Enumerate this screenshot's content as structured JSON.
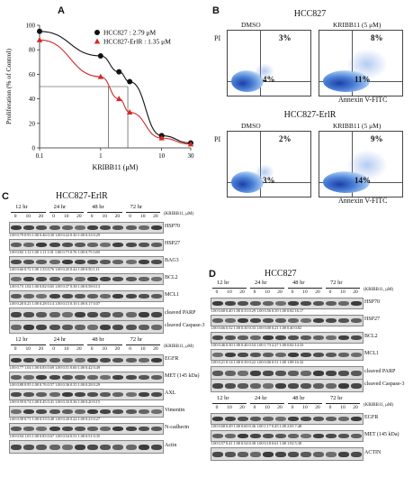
{
  "panels": {
    "A": {
      "label": "A",
      "chart_data": {
        "type": "line",
        "xlabel": "KRIBB11 (μM)",
        "ylabel": "Proliferation (% of Control)",
        "xscale": "log",
        "xlim": [
          0.1,
          30
        ],
        "ylim": [
          0,
          100
        ],
        "xticks": [
          "0.1",
          "1",
          "10",
          "30"
        ],
        "yticks": [
          "0",
          "20",
          "40",
          "60",
          "80",
          "100"
        ],
        "legend_position": "top-right",
        "series": [
          {
            "name": "HCC827 : 2.79 μM",
            "color": "#111111",
            "marker": "circle",
            "x": [
              0.1,
              1,
              2,
              3,
              10,
              30
            ],
            "y": [
              95,
              75,
              62,
              54,
              10,
              4
            ]
          },
          {
            "name": "HCC827-ErlR : 1.35 μM",
            "color": "#d22a2a",
            "marker": "triangle",
            "x": [
              0.1,
              1,
              2,
              3,
              10,
              30
            ],
            "y": [
              88,
              58,
              40,
              29,
              8,
              3
            ]
          }
        ]
      }
    },
    "B": {
      "label": "B",
      "top": {
        "title": "HCC827",
        "conditions": [
          "DMSO",
          "KRIBB11 (5 μM)"
        ],
        "y_axis": "PI",
        "x_axis": "Annexin V-FITC",
        "ur": [
          "3%",
          "8%"
        ],
        "lr": [
          "4%",
          "11%"
        ]
      },
      "bottom": {
        "title": "HCC827-ErlR",
        "conditions": [
          "DMSO",
          "KRIBB11 (5 μM)"
        ],
        "y_axis": "PI",
        "x_axis": "Annexin V-FITC",
        "ur": [
          "2%",
          "9%"
        ],
        "lr": [
          "3%",
          "14%"
        ]
      }
    },
    "C": {
      "label": "C",
      "title": "HCC827-ErlR",
      "times": [
        "12 hr",
        "24 hr",
        "48 hr",
        "72 hr"
      ],
      "doses": [
        "0",
        "10",
        "20",
        "0",
        "10",
        "20",
        "0",
        "10",
        "20",
        "0",
        "10",
        "20"
      ],
      "unit": "(KRIBB11, μM)",
      "blots_top": [
        {
          "label": "HSP70",
          "q": "1.00 0.79 0.93 1.00 0.46 0.30 1.00 0.22 0.30 1.00 0.33 0.29"
        },
        {
          "label": "HSP27",
          "q": "1.00 0.82 1.12 1.00 1.11 1.01 1.00 0.73 0.76 1.00 0.75 0.69"
        },
        {
          "label": "BAG3",
          "q": "1.00 0.66 0.72 1.00 1.33 0.76 1.00 0.45 0.44 1.00 0.50 1.11"
        },
        {
          "label": "BCL2",
          "q": "1.00 0.73 1.04 1.00 0.82 0.65 1.00 0.37 0.38 1.00 0.58 0.13"
        },
        {
          "label": "MCL1",
          "q": "1.00 0.20 0.21 1.00 0.28 0.14 1.00 0.15 0.10 1.00 0.17 0.07"
        },
        {
          "label": "cleaved PARP",
          "q": ""
        },
        {
          "label": "cleaved Caspase-3",
          "q": ""
        }
      ],
      "blots_bottom": [
        {
          "label": "EGFR",
          "q": "1.00 0.77 1.04 1.00 0.83 0.69 1.00 0.51 0.60 1.00 0.42 0.49"
        },
        {
          "label": "MET (145 kDa)",
          "q": "1.00 0.88 0.95 1.00 0.76 0.57 1.00 0.36 0.35 1.00 0.28 0.29"
        },
        {
          "label": "AXL",
          "q": "1.00 0.59 0.74 1.00 0.45 0.41 1.00 0.33 0.36 1.00 0.20 0.15"
        },
        {
          "label": "Vimentin",
          "q": "1.00 0.58 0.71 1.00 0.53 0.48 1.00 0.20 0.22 1.00 0.23 0.27"
        },
        {
          "label": "N-cadherin",
          "q": "1.00 0.94 1.03 1.00 0.83 0.67 1.00 0.54 0.51 1.00 0.51 0.35"
        },
        {
          "label": "Actin",
          "q": ""
        }
      ]
    },
    "D": {
      "label": "D",
      "title": "HCC827",
      "times": [
        "12 hr",
        "24 hr",
        "48 hr",
        "72 hr"
      ],
      "doses": [
        "0",
        "10",
        "20",
        "0",
        "10",
        "20",
        "0",
        "10",
        "20",
        "0",
        "10",
        "20"
      ],
      "unit": "(KRIBB11, μM)",
      "blots_top": [
        {
          "label": "HSP70",
          "q": "1.00 0.68 0.40 1.00 0.33 0.29 1.00 0.56 0.39 1.00 0.82 16.17"
        },
        {
          "label": "HSP27",
          "q": "1.00 0.66 0.32 1.00 0.30 0.33 1.00 0.00 0.21 1.00 0.40 0.82"
        },
        {
          "label": "BCL2",
          "q": "1.00 0.46 0.30 1.00 0.46 0.54 1.00 1.73 2.27 1.00 0.82 14.33"
        },
        {
          "label": "MCL1",
          "q": "1.00 0.21 0.14 1.00 0.39 0.22 1.00 0.06 0.51 1.00 1.88 16.32"
        },
        {
          "label": "cleaved PARP",
          "q": ""
        },
        {
          "label": "cleaved Caspase-3",
          "q": ""
        }
      ],
      "blots_bottom": [
        {
          "label": "EGFR",
          "q": "1.00 0.68 0.49 1.00 0.60 0.36 1.00 1.17 0.45 1.00 2.05 7.48"
        },
        {
          "label": "MET (145 kDa)",
          "q": "1.00 0.57 0.41 1.00 0.54 0.38 1.00 0.18 0.61 1.00 1.92 5.38"
        },
        {
          "label": "ACTIN",
          "q": ""
        }
      ]
    }
  }
}
